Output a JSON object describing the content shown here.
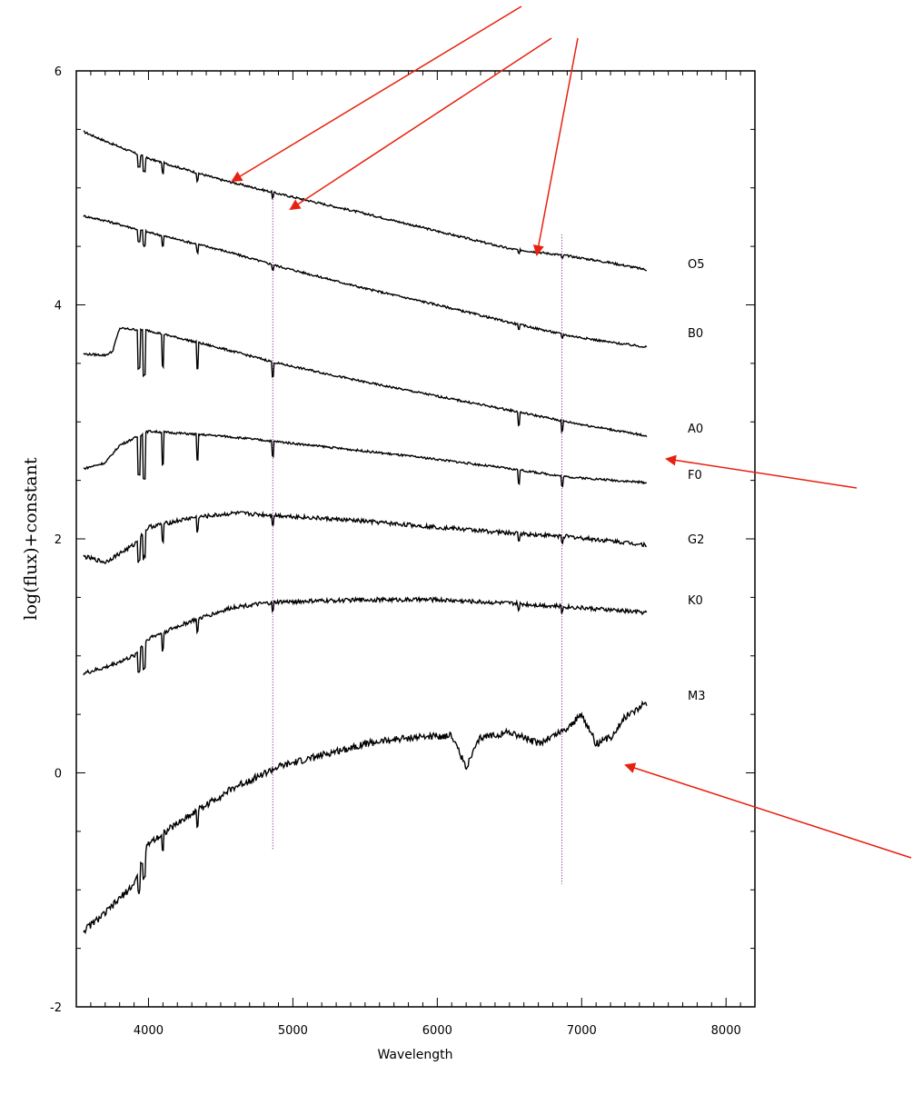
{
  "chart_data": {
    "type": "line",
    "title": "",
    "xlabel": "Wavelength",
    "ylabel": "log(flux)+constant",
    "xlim": [
      3500,
      8200
    ],
    "ylim": [
      -2,
      6
    ],
    "xticks": [
      "4000",
      "5000",
      "6000",
      "7000",
      "8000"
    ],
    "yticks": [
      "-2",
      "0",
      "2",
      "4",
      "6"
    ],
    "grid": false,
    "line_color": "#000000",
    "marker_color": "#800080",
    "arrow_color": "#e8200e",
    "reference_lines": [
      4861,
      6863
    ],
    "series": [
      {
        "name": "O5",
        "x": [
          3550,
          3700,
          4000,
          4500,
          4900,
          5500,
          6000,
          6500,
          6900,
          7200,
          7450
        ],
        "y": [
          5.48,
          5.4,
          5.25,
          5.07,
          4.95,
          4.78,
          4.63,
          4.48,
          4.42,
          4.36,
          4.3
        ]
      },
      {
        "name": "B0",
        "x": [
          3550,
          3700,
          4000,
          4500,
          4900,
          5500,
          6000,
          6500,
          6900,
          7200,
          7450
        ],
        "y": [
          4.76,
          4.72,
          4.62,
          4.47,
          4.33,
          4.14,
          4.0,
          3.85,
          3.74,
          3.68,
          3.64
        ]
      },
      {
        "name": "A0",
        "x": [
          3550,
          3700,
          3750,
          3800,
          4000,
          4500,
          4900,
          5500,
          6000,
          6500,
          6900,
          7450
        ],
        "y": [
          3.58,
          3.57,
          3.6,
          3.8,
          3.78,
          3.63,
          3.5,
          3.34,
          3.22,
          3.1,
          3.0,
          2.88
        ]
      },
      {
        "name": "F0",
        "x": [
          3550,
          3700,
          3800,
          4000,
          4500,
          4900,
          5500,
          6000,
          6500,
          6900,
          7450
        ],
        "y": [
          2.6,
          2.65,
          2.8,
          2.92,
          2.88,
          2.83,
          2.75,
          2.68,
          2.6,
          2.53,
          2.48
        ]
      },
      {
        "name": "G2",
        "x": [
          3550,
          3700,
          3900,
          4000,
          4300,
          4600,
          4900,
          5500,
          6000,
          6500,
          6900,
          7450
        ],
        "y": [
          1.85,
          1.8,
          1.95,
          2.1,
          2.18,
          2.22,
          2.2,
          2.15,
          2.1,
          2.05,
          2.02,
          1.95
        ]
      },
      {
        "name": "K0",
        "x": [
          3550,
          3700,
          3900,
          4000,
          4300,
          4600,
          4900,
          5500,
          6000,
          6500,
          6900,
          7450
        ],
        "y": [
          0.85,
          0.9,
          1.0,
          1.15,
          1.3,
          1.42,
          1.46,
          1.48,
          1.48,
          1.45,
          1.42,
          1.37
        ]
      },
      {
        "name": "M3",
        "x": [
          3550,
          3700,
          3900,
          4000,
          4300,
          4600,
          4900,
          5200,
          5500,
          5800,
          6100,
          6200,
          6300,
          6500,
          6700,
          6900,
          7000,
          7100,
          7200,
          7300,
          7450
        ],
        "y": [
          -1.35,
          -1.2,
          -0.95,
          -0.6,
          -0.35,
          -0.12,
          0.05,
          0.15,
          0.25,
          0.3,
          0.32,
          0.05,
          0.3,
          0.35,
          0.25,
          0.38,
          0.5,
          0.25,
          0.3,
          0.48,
          0.6
        ]
      }
    ]
  }
}
